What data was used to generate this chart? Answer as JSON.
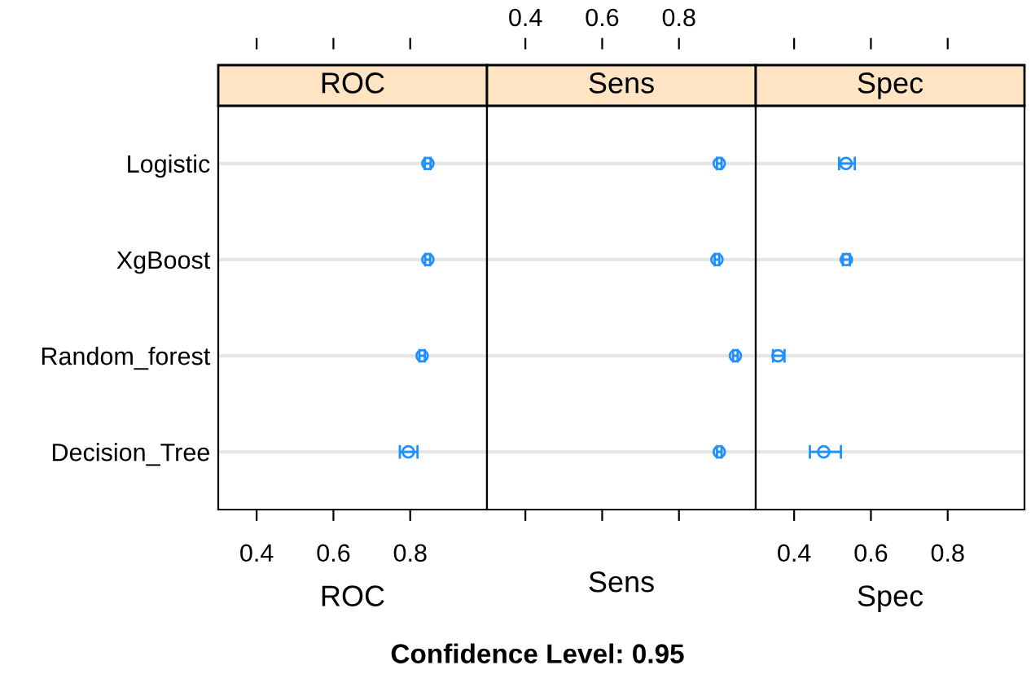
{
  "chart_data": [
    {
      "type": "scatter",
      "orientation": "horizontal",
      "title": "ROC",
      "xlabel": "ROC",
      "categories": [
        "Logistic",
        "XgBoost",
        "Random_forest",
        "Decision_Tree"
      ],
      "values": [
        0.846,
        0.846,
        0.831,
        0.795
      ],
      "errors": [
        [
          0.838,
          0.853
        ],
        [
          0.839,
          0.852
        ],
        [
          0.824,
          0.838
        ],
        [
          0.773,
          0.819
        ]
      ],
      "color": "#1e90ff",
      "marker": "circle",
      "grid": "y",
      "xlim": [
        0.3,
        1.0
      ],
      "xticks": [
        0.4,
        0.6,
        0.8
      ],
      "annotations": [
        "Confidence Level: 0.95"
      ]
    },
    {
      "type": "scatter",
      "orientation": "horizontal",
      "title": "Sens",
      "xlabel": "Sens",
      "categories": [
        null,
        null,
        null,
        null
      ],
      "values": [
        0.905,
        0.899,
        0.947,
        0.905
      ],
      "errors": [
        [
          0.899,
          0.911
        ],
        [
          0.893,
          0.905
        ],
        [
          0.941,
          0.953
        ],
        [
          0.899,
          0.911
        ]
      ],
      "color": "#1e90ff",
      "marker": "circle",
      "grid": "y",
      "tick_labels": "x2",
      "xlim": [
        0.3,
        1.0
      ],
      "xticks": [
        0.4,
        0.6,
        0.8
      ]
    },
    {
      "type": "scatter",
      "orientation": "horizontal",
      "title": "Spec",
      "xlabel": "Spec",
      "categories": [
        null,
        null,
        null,
        null
      ],
      "values": [
        0.535,
        0.536,
        0.358,
        0.477
      ],
      "errors": [
        [
          0.517,
          0.558
        ],
        [
          0.527,
          0.545
        ],
        [
          0.345,
          0.375
        ],
        [
          0.441,
          0.522
        ]
      ],
      "color": "#1e90ff",
      "marker": "circle",
      "grid": "y",
      "xlim": [
        0.3,
        1.0
      ],
      "xticks": [
        0.4,
        0.6,
        0.8
      ]
    }
  ]
}
